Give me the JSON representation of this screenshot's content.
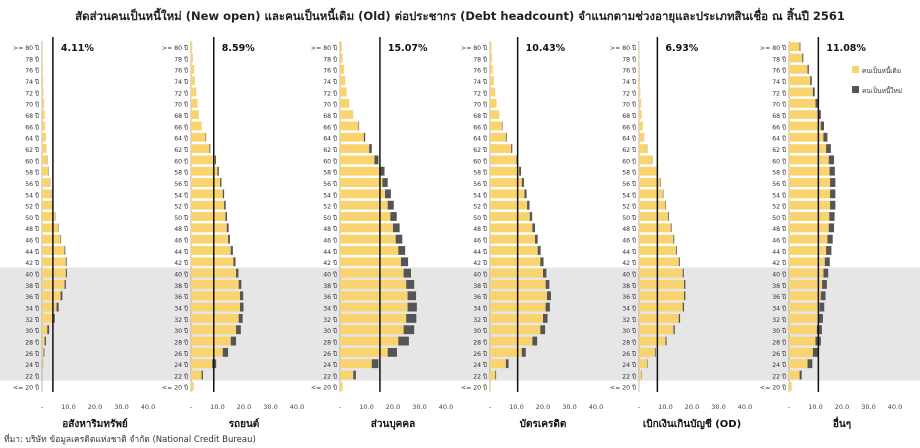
{
  "title": "สัดส่วนคนเป็นหนี้ใหม่ (New open) และคนเป็นหนี้เดิม (Old) ต่อประชากร (Debt headcount) จำแนกตามช่วงอายุและประเภทสินเชื่อ ณ สิ้นปี 2561",
  "source": "ที่มา: บริษัท ข้อมูลเครดิตแห่งชาติ จำกัด (National Credit Bureau)",
  "colors": {
    "old": "#F9D36E",
    "new": "#555555",
    "band": "#E6E6E6",
    "line": "#111111"
  },
  "legend": {
    "old": "คนเป็นหนี้เดิม",
    "new": "คนเป็นหนี้ใหม่"
  },
  "chart_data": {
    "type": "bar",
    "orientation": "horizontal",
    "stacked": true,
    "xlim": [
      0,
      40
    ],
    "x_ticks": [
      "-",
      "10.0",
      "20.0",
      "30.0",
      "40.0"
    ],
    "age_labels": [
      "<= 20 ปี",
      "22 ปี",
      "24 ปี",
      "26 ปี",
      "28 ปี",
      "30 ปี",
      "32 ปี",
      "34 ปี",
      "36 ปี",
      "38 ปี",
      "40 ปี",
      "42 ปี",
      "44 ปี",
      "46 ปี",
      "48 ปี",
      "50 ปี",
      "52 ปี",
      "54 ปี",
      "56 ปี",
      "58 ปี",
      "60 ปี",
      "62 ปี",
      "64 ปี",
      "66 ปี",
      "68 ปี",
      "70 ปี",
      "72 ปี",
      "74 ปี",
      "76 ปี",
      "78 ปี",
      ">= 80 ปี"
    ],
    "shaded_age_range": [
      "22 ปี",
      "40 ปี"
    ],
    "panels": [
      {
        "name": "อสังหาริมทรัพย์",
        "reference_value": 4.11,
        "reference_label": "4.11%",
        "old": [
          0,
          0,
          0.3,
          0.6,
          1,
          2,
          4,
          5.5,
          7,
          8.5,
          9,
          9,
          8.5,
          7,
          6,
          5,
          4,
          3.5,
          3,
          2.5,
          2,
          1.7,
          1.5,
          1.2,
          1,
          0.8,
          0.6,
          0.5,
          0.4,
          0.3,
          0.3
        ],
        "new": [
          0,
          0,
          0.1,
          0.3,
          0.5,
          0.7,
          0.8,
          0.8,
          0.7,
          0.5,
          0.4,
          0.3,
          0.3,
          0.2,
          0.2,
          0.1,
          0.1,
          0.1,
          0.1,
          0.1,
          0.1,
          0,
          0,
          0,
          0,
          0,
          0,
          0,
          0,
          0,
          0
        ]
      },
      {
        "name": "รถยนต์",
        "reference_value": 8.59,
        "reference_label": "8.59%",
        "old": [
          1,
          4,
          8,
          12,
          15,
          17,
          18,
          18.5,
          18.5,
          18,
          17,
          16,
          15,
          14,
          13.5,
          13,
          12.5,
          12,
          11,
          10,
          9,
          7,
          5.5,
          4,
          3,
          2.5,
          2,
          1.5,
          1.2,
          0.8,
          0.5
        ],
        "new": [
          0,
          0.5,
          1.5,
          2,
          2,
          1.8,
          1.5,
          1.3,
          1.2,
          1,
          0.9,
          0.8,
          0.8,
          0.7,
          0.7,
          0.6,
          0.6,
          0.5,
          0.5,
          0.5,
          0.4,
          0.3,
          0.2,
          0,
          0,
          0,
          0,
          0,
          0,
          0,
          0
        ]
      },
      {
        "name": "ส่วนบุคคล",
        "reference_value": 15.07,
        "reference_label": "15.07%",
        "old": [
          1,
          5,
          12,
          18,
          22,
          24,
          25,
          25.5,
          25.5,
          25,
          24,
          23,
          22,
          21,
          20,
          19,
          18,
          17,
          16,
          15,
          13,
          11,
          9,
          7,
          5,
          3.5,
          2.5,
          2,
          1.5,
          1,
          0.7
        ],
        "new": [
          0,
          1,
          2.5,
          3.5,
          4,
          4,
          3.8,
          3.5,
          3.2,
          3,
          2.8,
          2.7,
          2.6,
          2.5,
          2.5,
          2.4,
          2.3,
          2.2,
          2,
          1.8,
          1.5,
          1,
          0.5,
          0.2,
          0,
          0,
          0,
          0,
          0,
          0,
          0
        ]
      },
      {
        "name": "บัตรเครดิต",
        "reference_value": 10.43,
        "reference_label": "10.43%",
        "old": [
          0.3,
          2,
          6,
          12,
          16,
          19,
          20,
          21,
          21.5,
          21,
          20,
          19,
          18,
          17,
          16,
          15,
          14,
          13,
          12,
          11,
          10,
          8,
          6,
          4.5,
          3.5,
          2.5,
          2,
          1.5,
          1,
          0.8,
          0.5
        ],
        "new": [
          0,
          0.3,
          1,
          1.5,
          1.8,
          1.8,
          1.7,
          1.6,
          1.5,
          1.4,
          1.3,
          1.2,
          1.1,
          1,
          1,
          0.9,
          0.9,
          0.8,
          0.8,
          0.7,
          0.6,
          0.4,
          0.3,
          0.2,
          0,
          0,
          0,
          0,
          0,
          0,
          0
        ]
      },
      {
        "name": "เบิกเงินเกินบัญชี (OD)",
        "reference_value": 6.93,
        "reference_label": "6.93%",
        "old": [
          0.2,
          1,
          3,
          6,
          10,
          13,
          15,
          16.5,
          17,
          17,
          16.5,
          15,
          14,
          13,
          12,
          11,
          10,
          9,
          8,
          7,
          5,
          3,
          2,
          1.5,
          1,
          0.8,
          0.5,
          0.4,
          0.3,
          0.2,
          0.2
        ],
        "new": [
          0,
          0.1,
          0.2,
          0.3,
          0.4,
          0.5,
          0.5,
          0.5,
          0.5,
          0.5,
          0.4,
          0.4,
          0.3,
          0.3,
          0.3,
          0.3,
          0.2,
          0.2,
          0.2,
          0.2,
          0.1,
          0.1,
          0,
          0,
          0,
          0,
          0,
          0,
          0,
          0,
          0
        ]
      },
      {
        "name": "อื่นๆ",
        "reference_value": 11.08,
        "reference_label": "11.08%",
        "old": [
          1,
          4,
          7,
          9,
          10,
          10.5,
          11,
          11.5,
          12,
          12.5,
          13,
          13.5,
          14,
          14.5,
          15,
          15.2,
          15.5,
          15.5,
          15.5,
          15.3,
          15,
          14,
          13,
          12,
          11,
          10,
          9,
          8,
          7,
          5,
          4
        ],
        "new": [
          0,
          0.8,
          1.8,
          2,
          2,
          1.9,
          1.8,
          1.8,
          1.8,
          1.8,
          1.8,
          1.9,
          2,
          2,
          2,
          2,
          2,
          2,
          2,
          2,
          2,
          1.8,
          1.5,
          1.2,
          1,
          0.8,
          0.7,
          0.6,
          0.5,
          0.4,
          0.3
        ]
      }
    ]
  }
}
